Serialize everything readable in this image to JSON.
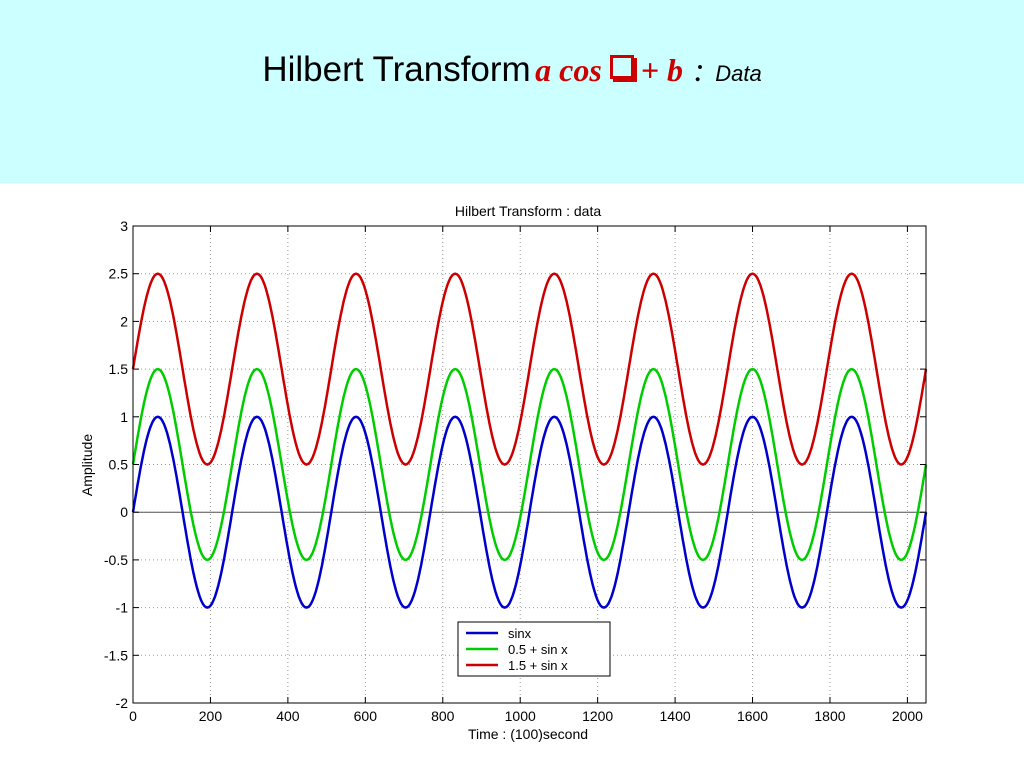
{
  "slide": {
    "title_main": "Hilbert Transform",
    "title_formula_a": "a cos",
    "title_formula_b": "+ b",
    "title_colon": ":",
    "title_sub": "Data",
    "header_color": "#ccffff"
  },
  "chart_data": {
    "type": "line",
    "title": "Hilbert Transform : data",
    "xlabel": "Time : (100)second",
    "ylabel": "Amplitude",
    "xlim": [
      0,
      2048
    ],
    "ylim": [
      -2,
      3
    ],
    "xticks": [
      "0",
      "200",
      "400",
      "600",
      "800",
      "1000",
      "1200",
      "1400",
      "1600",
      "1800",
      "2000"
    ],
    "yticks": [
      "-2",
      "-1.5",
      "-1",
      "-0.5",
      "0",
      "0.5",
      "1",
      "1.5",
      "2",
      "2.5",
      "3"
    ],
    "grid": true,
    "legend_position": "bottom-center",
    "series": [
      {
        "name": "sinx",
        "color": "#0000cc",
        "offset": 0,
        "amplitude": 1,
        "period": 256
      },
      {
        "name": "0.5 + sin x",
        "color": "#00cc00",
        "offset": 0.5,
        "amplitude": 1,
        "period": 256
      },
      {
        "name": "1.5 + sin x",
        "color": "#cc0000",
        "offset": 1.5,
        "amplitude": 1,
        "period": 256
      }
    ]
  }
}
